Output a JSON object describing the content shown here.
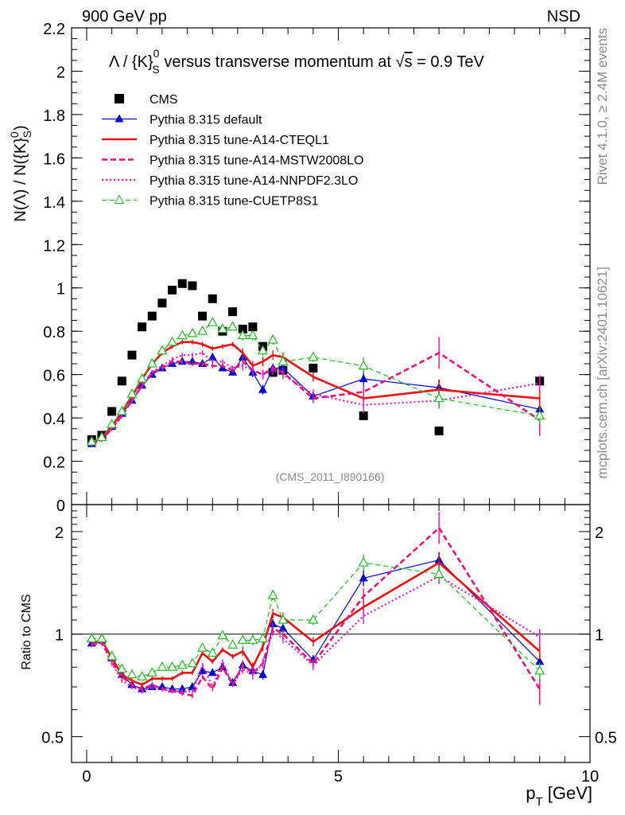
{
  "header": {
    "left": "900 GeV pp",
    "right": "NSD",
    "side_top": "Rivet 4.1.0, ≥ 2.4M events",
    "side_bottom": "mcplots.cern.ch [arXiv:2401.10621]",
    "watermark": "(CMS_2011_I890166)"
  },
  "title": {
    "part1": "Λ / {K}",
    "sup": "0",
    "sub": "S",
    "part2": " versus transverse momentum at ",
    "sqrt": "√",
    "s": "s",
    "part3": " = 0.9 TeV"
  },
  "ylabel_top": "N(Λ) / N({K}₀ˢ)",
  "ylabel_top_parts": {
    "a": "N(Λ)  /  N({K}",
    "sup": "0",
    "sub": "S",
    "b": ")"
  },
  "ylabel_bottom": "Ratio to CMS",
  "xlabel_parts": {
    "p": "p",
    "sub": "T",
    "rest": " [GeV]"
  },
  "colors": {
    "cms": "#000000",
    "default": "#0000cc",
    "cteql1": "#ee1111",
    "mstw": "#ee1177",
    "nnpdf": "#ee11cc",
    "cuetp": "#22bb22"
  },
  "chart_data": [
    {
      "type": "line",
      "panel": "main",
      "title": "Λ / {K}0S versus transverse momentum at √s = 0.9 TeV",
      "xlabel": "pT [GeV]",
      "ylabel": "N(Λ) / N({K}0S)",
      "xlim": [
        -0.3,
        10.0
      ],
      "ylim": [
        0,
        2.2
      ],
      "x_ticks": [
        "0",
        "5",
        "10"
      ],
      "y_ticks": [
        "0",
        "0.2",
        "0.4",
        "0.6",
        "0.8",
        "1",
        "1.2",
        "1.4",
        "1.6",
        "1.8",
        "2",
        "2.2"
      ],
      "legend_position": "top-left",
      "series": [
        {
          "name": "CMS",
          "key": "cms",
          "style": "square-markers",
          "x": [
            0.1,
            0.3,
            0.5,
            0.7,
            0.9,
            1.1,
            1.3,
            1.5,
            1.7,
            1.9,
            2.1,
            2.3,
            2.5,
            2.7,
            2.9,
            3.1,
            3.3,
            3.5,
            3.7,
            3.9,
            4.5,
            5.5,
            7.0,
            9.0
          ],
          "y": [
            0.3,
            0.32,
            0.43,
            0.57,
            0.69,
            0.82,
            0.87,
            0.93,
            0.99,
            1.02,
            1.01,
            0.87,
            0.95,
            0.8,
            0.89,
            0.81,
            0.82,
            0.73,
            0.61,
            0.62,
            0.63,
            0.41,
            0.34,
            0.57
          ]
        },
        {
          "name": "Pythia 8.315 default",
          "key": "default",
          "style": "solid-thin-triangle",
          "x": [
            0.1,
            0.3,
            0.5,
            0.7,
            0.9,
            1.1,
            1.3,
            1.5,
            1.7,
            1.9,
            2.1,
            2.3,
            2.5,
            2.7,
            2.9,
            3.1,
            3.3,
            3.5,
            3.7,
            3.9,
            4.5,
            5.5,
            7.0,
            9.0
          ],
          "y": [
            0.28,
            0.31,
            0.36,
            0.42,
            0.48,
            0.55,
            0.6,
            0.63,
            0.65,
            0.66,
            0.66,
            0.65,
            0.68,
            0.63,
            0.61,
            0.68,
            0.61,
            0.53,
            0.63,
            0.63,
            0.5,
            0.58,
            0.54,
            0.44
          ]
        },
        {
          "name": "Pythia 8.315 tune-A14-CTEQL1",
          "key": "cteql1",
          "style": "solid-thick",
          "x": [
            0.1,
            0.3,
            0.5,
            0.7,
            0.9,
            1.1,
            1.3,
            1.5,
            1.7,
            1.9,
            2.1,
            2.3,
            2.5,
            2.7,
            2.9,
            3.1,
            3.3,
            3.5,
            3.7,
            3.9,
            4.5,
            5.5,
            7.0,
            9.0
          ],
          "y": [
            0.28,
            0.31,
            0.36,
            0.43,
            0.5,
            0.58,
            0.65,
            0.7,
            0.73,
            0.75,
            0.75,
            0.74,
            0.72,
            0.73,
            0.74,
            0.7,
            0.64,
            0.66,
            0.69,
            0.68,
            0.59,
            0.49,
            0.53,
            0.49
          ]
        },
        {
          "name": "Pythia 8.315 tune-A14-MSTW2008LO",
          "key": "mstw",
          "style": "dashed-thick",
          "x": [
            0.1,
            0.3,
            0.5,
            0.7,
            0.9,
            1.1,
            1.3,
            1.5,
            1.7,
            1.9,
            2.1,
            2.3,
            2.5,
            2.7,
            2.9,
            3.1,
            3.3,
            3.5,
            3.7,
            3.9,
            4.5,
            5.5,
            7.0,
            9.0
          ],
          "y": [
            0.28,
            0.3,
            0.35,
            0.41,
            0.48,
            0.55,
            0.61,
            0.63,
            0.66,
            0.66,
            0.65,
            0.65,
            0.64,
            0.64,
            0.62,
            0.66,
            0.62,
            0.6,
            0.63,
            0.61,
            0.49,
            0.52,
            0.7,
            0.39
          ]
        },
        {
          "name": "Pythia 8.315 tune-A14-NNPDF2.3LO",
          "key": "nnpdf",
          "style": "dotted",
          "x": [
            0.1,
            0.3,
            0.5,
            0.7,
            0.9,
            1.1,
            1.3,
            1.5,
            1.7,
            1.9,
            2.1,
            2.3,
            2.5,
            2.7,
            2.9,
            3.1,
            3.3,
            3.5,
            3.7,
            3.9,
            4.5,
            5.5,
            7.0,
            9.0
          ],
          "y": [
            0.28,
            0.3,
            0.35,
            0.41,
            0.48,
            0.55,
            0.61,
            0.64,
            0.67,
            0.69,
            0.69,
            0.7,
            0.66,
            0.66,
            0.63,
            0.64,
            0.62,
            0.6,
            0.62,
            0.6,
            0.51,
            0.46,
            0.48,
            0.56
          ]
        },
        {
          "name": "Pythia 8.315 tune-CUETP8S1",
          "key": "cuetp",
          "style": "dashed-thin-open-triangle",
          "x": [
            0.1,
            0.3,
            0.5,
            0.7,
            0.9,
            1.1,
            1.3,
            1.5,
            1.7,
            1.9,
            2.1,
            2.3,
            2.5,
            2.7,
            2.9,
            3.1,
            3.3,
            3.5,
            3.7,
            3.9,
            4.5,
            5.5,
            7.0,
            9.0
          ],
          "y": [
            0.29,
            0.31,
            0.37,
            0.43,
            0.51,
            0.58,
            0.65,
            0.71,
            0.75,
            0.78,
            0.79,
            0.8,
            0.84,
            0.81,
            0.82,
            0.78,
            0.78,
            0.71,
            0.76,
            0.66,
            0.68,
            0.64,
            0.49,
            0.41
          ]
        }
      ]
    },
    {
      "type": "line",
      "panel": "ratio",
      "ylabel": "Ratio to CMS",
      "xlabel": "pT [GeV]",
      "xlim": [
        -0.3,
        10.0
      ],
      "ylim": [
        0.42,
        2.4
      ],
      "y_scale": "log",
      "y_ticks": [
        "0.5",
        "1",
        "2"
      ],
      "x_ticks": [
        "0",
        "5",
        "10"
      ],
      "reference_line": 1,
      "series": [
        {
          "name": "Pythia 8.315 default",
          "key": "default",
          "x": [
            0.1,
            0.3,
            0.5,
            0.7,
            0.9,
            1.1,
            1.3,
            1.5,
            1.7,
            1.9,
            2.1,
            2.3,
            2.5,
            2.7,
            2.9,
            3.1,
            3.3,
            3.5,
            3.7,
            3.9,
            4.5,
            5.5,
            7.0,
            9.0
          ],
          "y": [
            0.94,
            0.96,
            0.85,
            0.76,
            0.71,
            0.69,
            0.7,
            0.7,
            0.69,
            0.69,
            0.7,
            0.78,
            0.77,
            0.8,
            0.72,
            0.81,
            0.78,
            0.76,
            1.07,
            1.04,
            0.84,
            1.46,
            1.65,
            0.83
          ]
        },
        {
          "name": "Pythia 8.315 tune-A14-CTEQL1",
          "key": "cteql1",
          "x": [
            0.1,
            0.3,
            0.5,
            0.7,
            0.9,
            1.1,
            1.3,
            1.5,
            1.7,
            1.9,
            2.1,
            2.3,
            2.5,
            2.7,
            2.9,
            3.1,
            3.3,
            3.5,
            3.7,
            3.9,
            4.5,
            5.5,
            7.0,
            9.0
          ],
          "y": [
            0.94,
            0.96,
            0.85,
            0.76,
            0.73,
            0.71,
            0.74,
            0.74,
            0.74,
            0.77,
            0.77,
            0.88,
            0.83,
            0.9,
            0.86,
            0.89,
            0.8,
            0.92,
            1.15,
            1.12,
            0.95,
            1.2,
            1.62,
            0.89
          ]
        },
        {
          "name": "Pythia 8.315 tune-A14-MSTW2008LO",
          "key": "mstw",
          "x": [
            0.1,
            0.3,
            0.5,
            0.7,
            0.9,
            1.1,
            1.3,
            1.5,
            1.7,
            1.9,
            2.1,
            2.3,
            2.5,
            2.7,
            2.9,
            3.1,
            3.3,
            3.5,
            3.7,
            3.9,
            4.5,
            5.5,
            7.0,
            9.0
          ],
          "y": [
            0.93,
            0.95,
            0.83,
            0.75,
            0.71,
            0.69,
            0.71,
            0.69,
            0.68,
            0.67,
            0.66,
            0.75,
            0.69,
            0.8,
            0.71,
            0.81,
            0.77,
            0.82,
            1.04,
            1.0,
            0.82,
            1.29,
            2.05,
            0.69
          ]
        },
        {
          "name": "Pythia 8.315 tune-A14-NNPDF2.3LO",
          "key": "nnpdf",
          "x": [
            0.1,
            0.3,
            0.5,
            0.7,
            0.9,
            1.1,
            1.3,
            1.5,
            1.7,
            1.9,
            2.1,
            2.3,
            2.5,
            2.7,
            2.9,
            3.1,
            3.3,
            3.5,
            3.7,
            3.9,
            4.5,
            5.5,
            7.0,
            9.0
          ],
          "y": [
            0.93,
            0.94,
            0.82,
            0.73,
            0.7,
            0.68,
            0.7,
            0.69,
            0.68,
            0.68,
            0.68,
            0.81,
            0.7,
            0.83,
            0.71,
            0.79,
            0.76,
            0.82,
            1.02,
            0.97,
            0.81,
            1.13,
            1.48,
            0.98
          ]
        },
        {
          "name": "Pythia 8.315 tune-CUETP8S1",
          "key": "cuetp",
          "x": [
            0.1,
            0.3,
            0.5,
            0.7,
            0.9,
            1.1,
            1.3,
            1.5,
            1.7,
            1.9,
            2.1,
            2.3,
            2.5,
            2.7,
            2.9,
            3.1,
            3.3,
            3.5,
            3.7,
            3.9,
            4.5,
            5.5,
            7.0,
            9.0
          ],
          "y": [
            0.97,
            0.97,
            0.86,
            0.79,
            0.76,
            0.75,
            0.77,
            0.8,
            0.8,
            0.81,
            0.82,
            0.91,
            0.88,
            0.99,
            0.93,
            0.96,
            0.96,
            0.97,
            1.3,
            1.1,
            1.1,
            1.62,
            1.5,
            0.78
          ]
        }
      ]
    }
  ]
}
